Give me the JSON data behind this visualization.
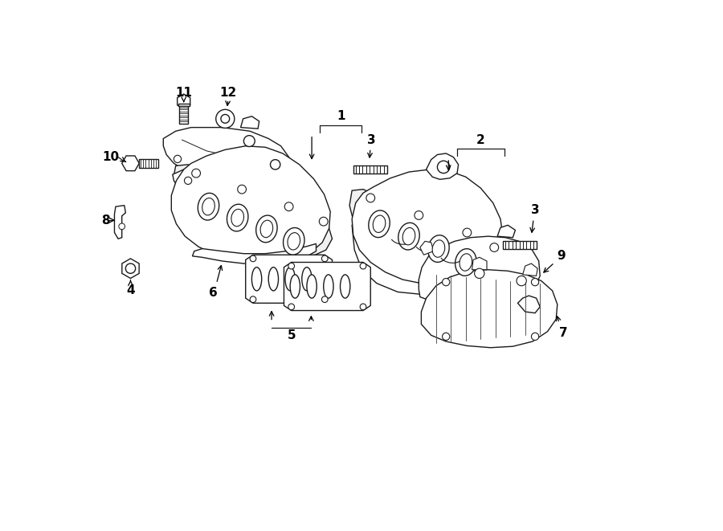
{
  "bg_color": "#ffffff",
  "line_color": "#1a1a1a",
  "lw": 1.0,
  "fig_w": 9.0,
  "fig_h": 6.61,
  "dpi": 100,
  "xlim": [
    0,
    900
  ],
  "ylim": [
    0,
    661
  ]
}
